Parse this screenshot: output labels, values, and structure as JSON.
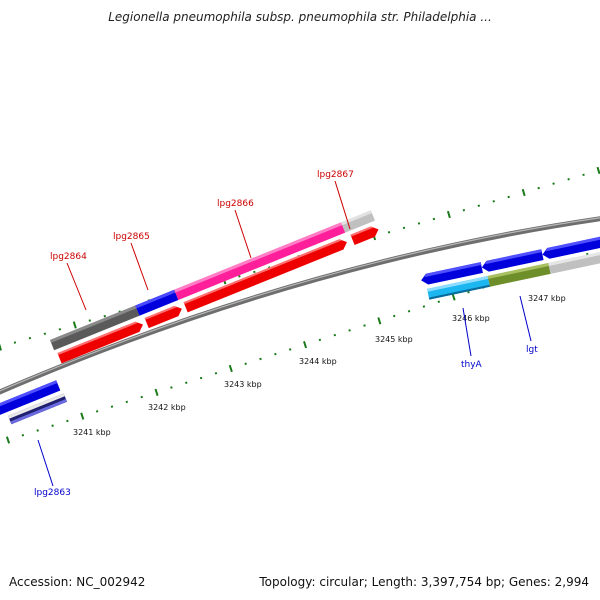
{
  "title": "Legionella pneumophila subsp. pneumophila str. Philadelphia ...",
  "footer": {
    "accession": "Accession: NC_002942",
    "topology": "Topology: circular; Length: 3,397,754 bp; Genes: 2,994"
  },
  "colors": {
    "background": "#ffffff",
    "backbone": "#888888",
    "ticks": "#1a7a1a",
    "forward_label": "#cc0000",
    "reverse_label": "#0000cc",
    "cds_red": "#ff0000",
    "gray": "#6b6b6b",
    "light_gray": "#c6c6c6",
    "blue": "#0000dd",
    "pink": "#ff1f9a",
    "cyan": "#1cb6f0",
    "olive": "#6e8e2a",
    "navy": "#202070"
  },
  "scale_labels": [
    "3241 kbp",
    "3242 kbp",
    "3243 kbp",
    "3244 kbp",
    "3245 kbp",
    "3246 kbp",
    "3247 kbp"
  ],
  "forward_genes": [
    "lpg2864",
    "lpg2865",
    "lpg2866",
    "lpg2867"
  ],
  "reverse_genes": [
    "lpg2863",
    "thyA",
    "lgt"
  ]
}
